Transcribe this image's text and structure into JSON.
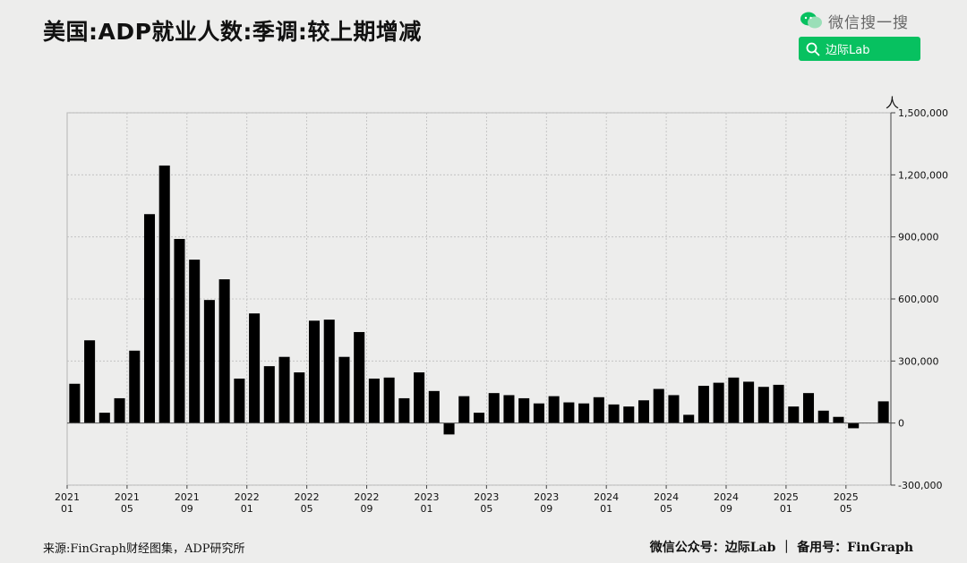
{
  "header": {
    "title": "美国:ADP就业人数:季调:较上期增减"
  },
  "wechat": {
    "brand_label": "微信搜一搜",
    "search_text": "边际Lab",
    "accent_color": "#07c160"
  },
  "footer": {
    "source": "来源:FinGraph财经图集，ADP研究所",
    "account_label": "微信公众号：边际Lab",
    "separator": "｜",
    "backup_label": "备用号：FinGraph"
  },
  "chart_data": {
    "type": "bar",
    "unit_label": "人",
    "y_axis_position": "right",
    "ylim": [
      -300000,
      1500000
    ],
    "y_ticks": [
      -300000,
      0,
      300000,
      600000,
      900000,
      1200000,
      1500000
    ],
    "y_tick_labels": [
      "-300,000",
      "0",
      "300,000",
      "600,000",
      "900,000",
      "1,200,000",
      "1,500,000"
    ],
    "grid": true,
    "bar_color": "#000000",
    "x_ticks": [
      {
        "index": 0,
        "year": "2021",
        "month": "01"
      },
      {
        "index": 4,
        "year": "2021",
        "month": "05"
      },
      {
        "index": 8,
        "year": "2021",
        "month": "09"
      },
      {
        "index": 12,
        "year": "2022",
        "month": "01"
      },
      {
        "index": 16,
        "year": "2022",
        "month": "05"
      },
      {
        "index": 20,
        "year": "2022",
        "month": "09"
      },
      {
        "index": 24,
        "year": "2023",
        "month": "01"
      },
      {
        "index": 28,
        "year": "2023",
        "month": "05"
      },
      {
        "index": 32,
        "year": "2023",
        "month": "09"
      },
      {
        "index": 36,
        "year": "2024",
        "month": "01"
      },
      {
        "index": 40,
        "year": "2024",
        "month": "05"
      },
      {
        "index": 44,
        "year": "2024",
        "month": "09"
      },
      {
        "index": 48,
        "year": "2025",
        "month": "01"
      },
      {
        "index": 52,
        "year": "2025",
        "month": "05"
      }
    ],
    "categories": [
      "2021-01",
      "2021-02",
      "2021-03",
      "2021-04",
      "2021-05",
      "2021-06",
      "2021-07",
      "2021-08",
      "2021-09",
      "2021-10",
      "2021-11",
      "2021-12",
      "2022-01",
      "2022-02",
      "2022-03",
      "2022-04",
      "2022-05",
      "2022-06",
      "2022-07",
      "2022-08",
      "2022-09",
      "2022-10",
      "2022-11",
      "2022-12",
      "2023-01",
      "2023-02",
      "2023-03",
      "2023-04",
      "2023-05",
      "2023-06",
      "2023-07",
      "2023-08",
      "2023-09",
      "2023-10",
      "2023-11",
      "2023-12",
      "2024-01",
      "2024-02",
      "2024-03",
      "2024-04",
      "2024-05",
      "2024-06",
      "2024-07",
      "2024-08",
      "2024-09",
      "2024-10",
      "2024-11",
      "2024-12",
      "2025-01",
      "2025-02",
      "2025-03",
      "2025-04",
      "2025-05",
      "2025-06",
      "2025-07"
    ],
    "values": [
      190000,
      400000,
      50000,
      120000,
      350000,
      1010000,
      1245000,
      890000,
      790000,
      595000,
      695000,
      215000,
      530000,
      275000,
      320000,
      245000,
      495000,
      500000,
      320000,
      440000,
      215000,
      220000,
      120000,
      245000,
      155000,
      -55000,
      130000,
      50000,
      145000,
      135000,
      120000,
      95000,
      130000,
      100000,
      95000,
      125000,
      90000,
      80000,
      110000,
      165000,
      135000,
      40000,
      180000,
      195000,
      220000,
      200000,
      175000,
      185000,
      80000,
      145000,
      60000,
      30000,
      -25000,
      0,
      105000
    ]
  }
}
